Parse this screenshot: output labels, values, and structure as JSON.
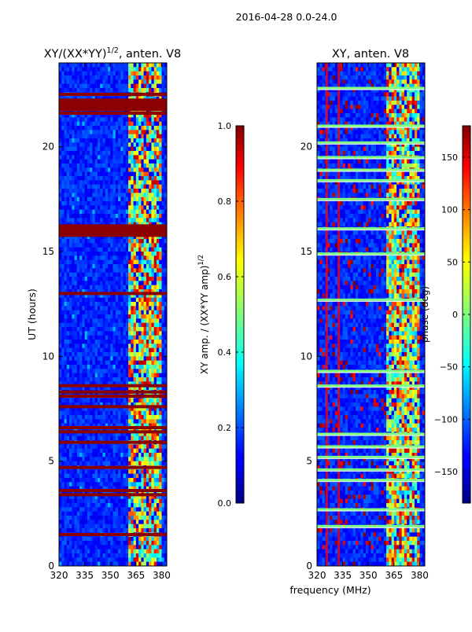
{
  "suptitle": "2016-04-28 0.0-24.0",
  "chart_data": [
    {
      "type": "heatmap",
      "title": "XY/(XX*YY)",
      "title_sup": "1/2",
      "title_suffix": ", anten. V8",
      "xlabel": "",
      "ylabel": "UT (hours)",
      "x_range": [
        320,
        383
      ],
      "y_range": [
        0,
        24
      ],
      "x_ticks": [
        320,
        335,
        350,
        365,
        380
      ],
      "y_ticks": [
        0,
        5,
        10,
        15,
        20
      ],
      "colorbar": {
        "label": "XY amp. / (XX*YY amp)",
        "label_sup": "1/2",
        "range": [
          0.0,
          1.0
        ],
        "ticks": [
          0.0,
          0.2,
          0.4,
          0.6,
          0.8,
          1.0
        ],
        "tick_labels": [
          "0.0",
          "0.2",
          "0.4",
          "0.6",
          "0.8",
          "1.0"
        ],
        "colormap": "jet"
      },
      "saturated_rows_ut": [
        1.5,
        3.4,
        3.6,
        4.7,
        5.9,
        6.4,
        6.6,
        7.6,
        8.1,
        8.3,
        8.6,
        13.0,
        15.8,
        16.0,
        16.2,
        21.6,
        21.8,
        22.1,
        22.5
      ],
      "active_band_mhz": [
        360,
        380
      ]
    },
    {
      "type": "heatmap",
      "title": "XY, anten. V8",
      "xlabel": "frequency (MHz)",
      "ylabel": "",
      "x_range": [
        320,
        383
      ],
      "y_range": [
        0,
        24
      ],
      "x_ticks": [
        320,
        335,
        350,
        365,
        380
      ],
      "y_ticks": [
        0,
        5,
        10,
        15,
        20
      ],
      "colorbar": {
        "label": "phase (deg)",
        "range": [
          -180,
          180
        ],
        "ticks": [
          -150,
          -100,
          -50,
          0,
          50,
          100,
          150
        ],
        "tick_labels": [
          "−150",
          "−100",
          "−50",
          "0",
          "50",
          "100",
          "150"
        ],
        "colormap": "jet"
      },
      "flagged_rows_ut": [
        1.9,
        2.7,
        4.1,
        4.6,
        5.2,
        5.7,
        6.3,
        8.6,
        9.3,
        12.7,
        14.9,
        16.1,
        17.5,
        18.4,
        18.9,
        19.5,
        20.2,
        21.0,
        22.8
      ],
      "active_band_mhz": [
        360,
        380
      ]
    }
  ]
}
